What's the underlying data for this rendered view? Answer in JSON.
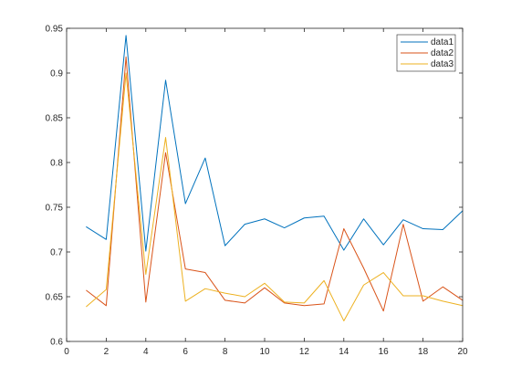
{
  "chart_data": {
    "type": "line",
    "title": "",
    "xlabel": "",
    "ylabel": "",
    "xlim": [
      0,
      20
    ],
    "ylim": [
      0.6,
      0.95
    ],
    "x_ticks": [
      0,
      2,
      4,
      6,
      8,
      10,
      12,
      14,
      16,
      18,
      20
    ],
    "y_ticks": [
      0.6,
      0.65,
      0.7,
      0.75,
      0.8,
      0.85,
      0.9,
      0.95
    ],
    "x_tick_labels": [
      "0",
      "2",
      "4",
      "6",
      "8",
      "10",
      "12",
      "14",
      "16",
      "18",
      "20"
    ],
    "y_tick_labels": [
      "0.6",
      "0.65",
      "0.7",
      "0.75",
      "0.8",
      "0.85",
      "0.9",
      "0.95"
    ],
    "grid": false,
    "legend_position": "top-right",
    "x": [
      1,
      2,
      3,
      4,
      5,
      6,
      7,
      8,
      9,
      10,
      11,
      12,
      13,
      14,
      15,
      16,
      17,
      18,
      19,
      20
    ],
    "series": [
      {
        "name": "data1",
        "color": "#0072BD",
        "values": [
          0.728,
          0.714,
          0.942,
          0.701,
          0.892,
          0.754,
          0.805,
          0.707,
          0.731,
          0.737,
          0.727,
          0.738,
          0.74,
          0.702,
          0.737,
          0.708,
          0.736,
          0.726,
          0.725,
          0.746
        ]
      },
      {
        "name": "data2",
        "color": "#D95319",
        "values": [
          0.657,
          0.64,
          0.918,
          0.644,
          0.811,
          0.681,
          0.677,
          0.646,
          0.643,
          0.66,
          0.643,
          0.64,
          0.642,
          0.726,
          0.682,
          0.634,
          0.731,
          0.645,
          0.661,
          0.646
        ]
      },
      {
        "name": "data3",
        "color": "#EDB120",
        "values": [
          0.639,
          0.658,
          0.9,
          0.675,
          0.828,
          0.645,
          0.659,
          0.654,
          0.65,
          0.665,
          0.644,
          0.643,
          0.668,
          0.623,
          0.663,
          0.677,
          0.651,
          0.651,
          0.645,
          0.64
        ]
      }
    ]
  }
}
